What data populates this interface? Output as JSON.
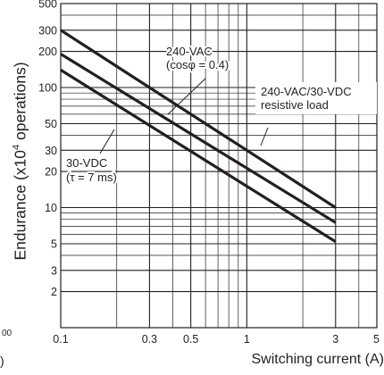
{
  "chart_data": {
    "type": "line",
    "title": "",
    "ylabel": {
      "prefix": "Endurance (x10",
      "sup": "4",
      "suffix": " operations)"
    },
    "xlabel": "Switching current (A)",
    "x_scale": "log",
    "y_scale": "log",
    "xlim": [
      0.1,
      5
    ],
    "ylim": [
      1,
      500
    ],
    "grid": true,
    "x_ticks": [
      {
        "value": 0.1,
        "label": "0.1"
      },
      {
        "value": 0.3,
        "label": "0.3"
      },
      {
        "value": 0.5,
        "label": "0.5"
      },
      {
        "value": 1,
        "label": "1"
      },
      {
        "value": 3,
        "label": "3"
      },
      {
        "value": 5,
        "label": "5"
      }
    ],
    "y_ticks": [
      {
        "value": 2,
        "label": "2"
      },
      {
        "value": 3,
        "label": "3"
      },
      {
        "value": 5,
        "label": "5"
      },
      {
        "value": 10,
        "label": "10"
      },
      {
        "value": 20,
        "label": "20"
      },
      {
        "value": 30,
        "label": "30"
      },
      {
        "value": 50,
        "label": "50"
      },
      {
        "value": 100,
        "label": "100"
      },
      {
        "value": 200,
        "label": "200"
      },
      {
        "value": 300,
        "label": "300"
      },
      {
        "value": 500,
        "label": "500"
      }
    ],
    "series": [
      {
        "x": [
          0.1,
          3
        ],
        "y": [
          300,
          10
        ]
      },
      {
        "x": [
          0.1,
          3
        ],
        "y": [
          190,
          7.5
        ]
      },
      {
        "x": [
          0.1,
          3
        ],
        "y": [
          140,
          5.2
        ]
      }
    ],
    "annotations": [
      {
        "lines": [
          "240-VAC",
          "(cosφ = 0.4)"
        ]
      },
      {
        "lines": [
          "240-VAC/30-VDC",
          "resistive load"
        ]
      },
      {
        "lines": [
          "30-VDC",
          "(τ = 7 ms)"
        ]
      }
    ]
  },
  "fragments": {
    "top": "00",
    "bottom": ")"
  }
}
